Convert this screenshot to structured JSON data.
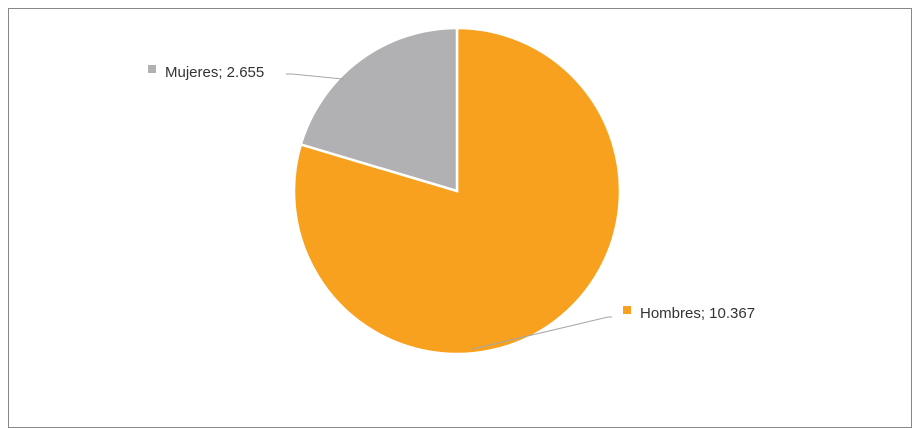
{
  "chart_data": {
    "type": "pie",
    "categories": [
      "Hombres",
      "Mujeres"
    ],
    "values": [
      10367,
      2655
    ],
    "value_labels": [
      "10.367",
      "2.655"
    ],
    "data_labels": [
      "Hombres; 10.367",
      "Mujeres; 2.655"
    ],
    "colors": [
      "#F7A11E",
      "#B1B1B3"
    ],
    "title": "",
    "legend": "none"
  }
}
